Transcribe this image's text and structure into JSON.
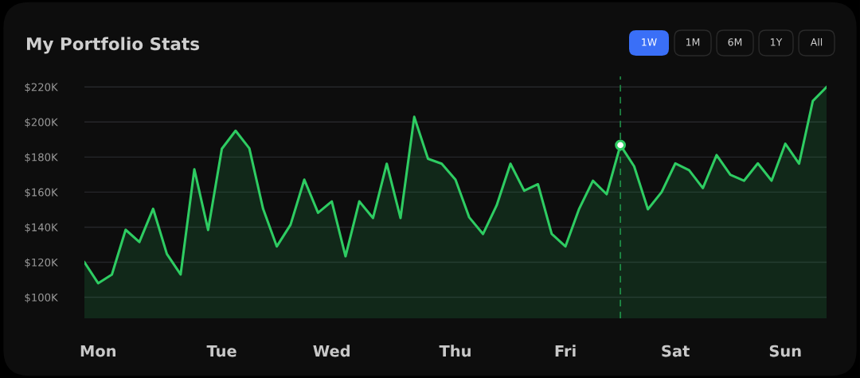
{
  "chart_data": {
    "type": "area",
    "title": "My Portfolio Stats",
    "annotations": [
      "1W",
      "1M",
      "6M",
      "1Y",
      "All"
    ],
    "categories": [
      null,
      "Mon",
      null,
      null,
      null,
      null,
      null,
      null,
      null,
      null,
      "Tue",
      null,
      null,
      null,
      null,
      null,
      null,
      null,
      "Wed",
      null,
      null,
      null,
      null,
      null,
      null,
      null,
      null,
      "Thu",
      null,
      null,
      null,
      null,
      null,
      null,
      null,
      "Fri",
      null,
      null,
      null,
      null,
      null,
      null,
      null,
      "Sat",
      null,
      null,
      null,
      null,
      null,
      null,
      null,
      "Sun",
      null,
      null,
      null
    ],
    "series": [
      {
        "color": "#2ecc62",
        "values": [
          120,
          108,
          113,
          138.5,
          131.5,
          150.5,
          124.7,
          113,
          173,
          138.4,
          184.7,
          195,
          185,
          150.5,
          129,
          141.4,
          167.1,
          148.2,
          154.7,
          123.4,
          154.7,
          145.2,
          176.2,
          145.2,
          202.9,
          179,
          176.2,
          167.1,
          145.6,
          136.1,
          152.5,
          176.2,
          160.8,
          164.5,
          136.2,
          129,
          150.5,
          166.5,
          158.8,
          186.8,
          174.7,
          150.2,
          160,
          176.4,
          172.5,
          162.3,
          181.1,
          169.9,
          166.5,
          176.4,
          166.5,
          187.6,
          176.2,
          212,
          219.9
        ]
      },
      {
        "type": "scatter",
        "color": "#ffffff",
        "values": [
          null,
          null,
          null,
          null,
          null,
          null,
          null,
          null,
          null,
          null,
          null,
          null,
          null,
          null,
          null,
          null,
          null,
          null,
          null,
          null,
          null,
          null,
          null,
          null,
          null,
          null,
          null,
          null,
          null,
          null,
          null,
          null,
          null,
          null,
          null,
          null,
          null,
          null,
          null,
          186.8,
          null,
          null,
          null,
          null,
          null,
          null,
          null,
          null,
          null,
          null,
          null,
          null,
          null,
          null,
          null
        ]
      }
    ],
    "ylim": [
      88,
      226
    ],
    "yticks": [
      {
        "value": 100,
        "label": "$100K"
      },
      {
        "value": 120,
        "label": "$120K"
      },
      {
        "value": 140,
        "label": "$140K"
      },
      {
        "value": 160,
        "label": "$160K"
      },
      {
        "value": 180,
        "label": "$180K"
      },
      {
        "value": 200,
        "label": "$200K"
      },
      {
        "value": 220,
        "label": "$220K"
      }
    ],
    "grid": "y"
  }
}
